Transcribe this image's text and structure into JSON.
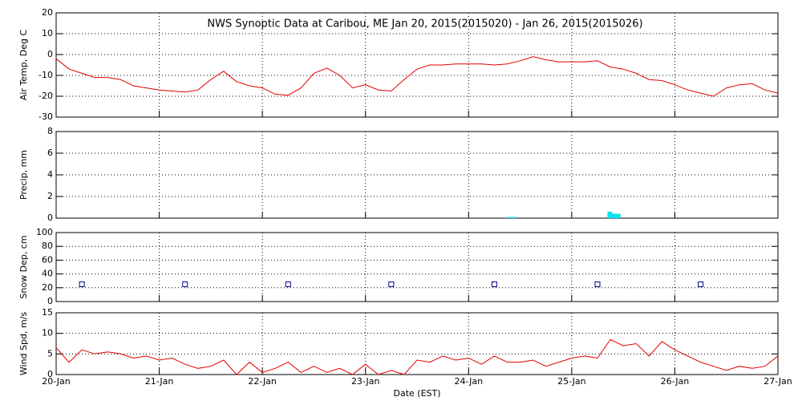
{
  "chart_data": [
    {
      "type": "line",
      "title": "NWS Synoptic Data at Caribou, ME   Jan 20, 2015(2015020) - Jan 26, 2015(2015026)",
      "ylabel": "Air Temp, Deg C",
      "color": "#e00000",
      "grid": true,
      "xlim": [
        20,
        27
      ],
      "xticks": [
        20,
        21,
        22,
        23,
        24,
        25,
        26,
        27
      ],
      "ylim": [
        -30,
        20
      ],
      "yticks": [
        -30,
        -20,
        -10,
        0,
        10,
        20
      ],
      "x": [
        20,
        20.125,
        20.25,
        20.375,
        20.5,
        20.625,
        20.75,
        20.875,
        21,
        21.125,
        21.25,
        21.375,
        21.5,
        21.625,
        21.75,
        21.875,
        22,
        22.125,
        22.25,
        22.375,
        22.5,
        22.625,
        22.75,
        22.875,
        23,
        23.125,
        23.25,
        23.375,
        23.5,
        23.625,
        23.75,
        23.875,
        24,
        24.125,
        24.25,
        24.375,
        24.5,
        24.625,
        24.75,
        24.875,
        25,
        25.125,
        25.25,
        25.375,
        25.5,
        25.625,
        25.75,
        25.875,
        26,
        26.125,
        26.25,
        26.375,
        26.5,
        26.625,
        26.75,
        26.875,
        27
      ],
      "values": [
        -2,
        -7,
        -9,
        -11,
        -11,
        -12,
        -15,
        -16,
        -17,
        -17.5,
        -18,
        -17,
        -12,
        -8,
        -13,
        -15,
        -16,
        -19,
        -19.5,
        -16,
        -9,
        -6.5,
        -10,
        -16,
        -14.5,
        -17,
        -17.5,
        -12,
        -7,
        -5,
        -5,
        -4.5,
        -4.5,
        -4.5,
        -5,
        -4.5,
        -3,
        -1,
        -2.5,
        -3.5,
        -3.5,
        -3.5,
        -3,
        -6,
        -7,
        -9,
        -12,
        -12.5,
        -14.5,
        -17,
        -18.5,
        -20,
        -16,
        -14.5,
        -14,
        -17,
        -18.5
      ]
    },
    {
      "type": "bar",
      "ylabel": "Precip, mm",
      "color": "#00e5ee",
      "grid": true,
      "xlim": [
        20,
        27
      ],
      "xticks": [
        20,
        21,
        22,
        23,
        24,
        25,
        26,
        27
      ],
      "ylim": [
        0,
        8
      ],
      "yticks": [
        0,
        2,
        4,
        6,
        8
      ],
      "x": [
        24.39,
        24.44,
        25.37,
        25.41,
        25.45
      ],
      "values": [
        0.1,
        0.1,
        0.6,
        0.4,
        0.4
      ]
    },
    {
      "type": "scatter",
      "ylabel": "Snow Dep, cm",
      "color": "#000090",
      "grid": true,
      "xlim": [
        20,
        27
      ],
      "xticks": [
        20,
        21,
        22,
        23,
        24,
        25,
        26,
        27
      ],
      "ylim": [
        0,
        100
      ],
      "yticks": [
        0,
        20,
        40,
        60,
        80,
        100
      ],
      "x": [
        20.25,
        21.25,
        22.25,
        23.25,
        24.25,
        25.25,
        26.25
      ],
      "values": [
        25,
        25,
        25,
        25,
        25,
        25,
        25
      ]
    },
    {
      "type": "line",
      "ylabel": "Wind Spd, m/s",
      "xlabel": "Date (EST)",
      "color": "#e00000",
      "grid": true,
      "xlim": [
        20,
        27
      ],
      "xticks": [
        {
          "value": 20,
          "label": "20-Jan"
        },
        {
          "value": 21,
          "label": "21-Jan"
        },
        {
          "value": 22,
          "label": "22-Jan"
        },
        {
          "value": 23,
          "label": "23-Jan"
        },
        {
          "value": 24,
          "label": "24-Jan"
        },
        {
          "value": 25,
          "label": "25-Jan"
        },
        {
          "value": 26,
          "label": "26-Jan"
        },
        {
          "value": 27,
          "label": "27-Jan"
        }
      ],
      "ylim": [
        0,
        15
      ],
      "yticks": [
        0,
        5,
        10,
        15
      ],
      "x": [
        20,
        20.125,
        20.25,
        20.375,
        20.5,
        20.625,
        20.75,
        20.875,
        21,
        21.125,
        21.25,
        21.375,
        21.5,
        21.625,
        21.75,
        21.875,
        22,
        22.125,
        22.25,
        22.375,
        22.5,
        22.625,
        22.75,
        22.875,
        23,
        23.125,
        23.25,
        23.375,
        23.5,
        23.625,
        23.75,
        23.875,
        24,
        24.125,
        24.25,
        24.375,
        24.5,
        24.625,
        24.75,
        24.875,
        25,
        25.125,
        25.25,
        25.375,
        25.5,
        25.625,
        25.75,
        25.875,
        26,
        26.125,
        26.25,
        26.375,
        26.5,
        26.625,
        26.75,
        26.875,
        27
      ],
      "values": [
        6.5,
        3,
        6,
        5,
        5.5,
        5,
        4,
        4.5,
        3.5,
        4,
        2.5,
        1.5,
        2,
        3.5,
        0,
        3,
        0.5,
        1.5,
        3,
        0.5,
        2,
        0.5,
        1.5,
        0,
        2.5,
        0,
        1,
        0,
        3.5,
        3,
        4.5,
        3.5,
        4,
        2.5,
        4.5,
        3,
        3,
        3.5,
        2,
        3,
        4,
        4.5,
        4,
        8.5,
        7,
        7.5,
        4.5,
        8,
        6,
        4.5,
        3,
        2,
        1,
        2,
        1.5,
        2,
        4.5
      ]
    }
  ]
}
